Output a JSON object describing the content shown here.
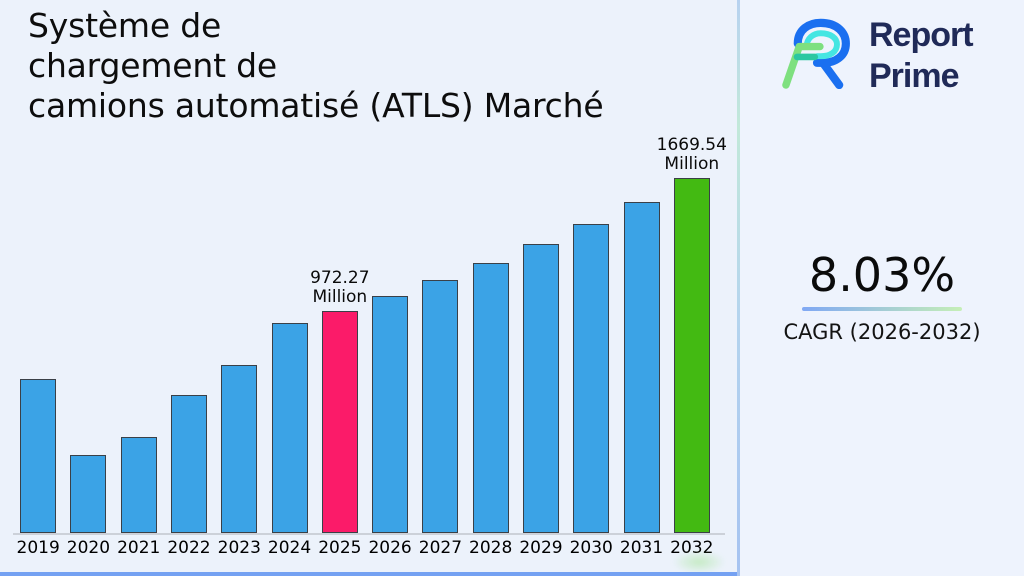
{
  "header": {
    "title": "Système de\nchargement de\ncamions automatisé (ATLS) Marché"
  },
  "brand": {
    "line1": "Report",
    "line2": "Prime"
  },
  "stats": {
    "cagr_value": "8.03%",
    "cagr_label": "CAGR (2026-2032)"
  },
  "colors": {
    "bar_default": "#3ba3e6",
    "bar_highlight_2025": "#fb1b69",
    "bar_forecast_2032": "#43ba12",
    "divider_blue": "#a6c3f1",
    "bottom_accent": "#74a1f2",
    "underline_gradient_from": "#80a8f4",
    "underline_gradient_to": "#c6efb7",
    "brand_navy": "#202a58",
    "logo_blue": "#1a6ff0",
    "logo_cyan": "#45e6e2",
    "logo_green": "#7ee07f",
    "logo_teal": "#2cc7a2"
  },
  "chart_data": {
    "type": "bar",
    "title": "Système de chargement de camions automatisé (ATLS) Marché",
    "unit": "Million",
    "xlabel": "",
    "ylabel": "",
    "grid": false,
    "legend": false,
    "ylim": [
      -192,
      1870
    ],
    "categories": [
      "2019",
      "2020",
      "2021",
      "2022",
      "2023",
      "2024",
      "2025",
      "2026",
      "2027",
      "2028",
      "2029",
      "2030",
      "2031",
      "2032"
    ],
    "values": [
      615,
      217,
      312,
      532,
      689,
      910,
      972.27,
      1050.34,
      1134.68,
      1225.79,
      1324.22,
      1430.55,
      1545.42,
      1669.54
    ],
    "bar_colors": [
      "#3ba3e6",
      "#3ba3e6",
      "#3ba3e6",
      "#3ba3e6",
      "#3ba3e6",
      "#3ba3e6",
      "#fb1b69",
      "#3ba3e6",
      "#3ba3e6",
      "#3ba3e6",
      "#3ba3e6",
      "#3ba3e6",
      "#3ba3e6",
      "#43ba12"
    ],
    "point_labels": [
      "",
      "",
      "",
      "",
      "",
      "",
      "972.27\nMillion",
      "",
      "",
      "",
      "",
      "",
      "",
      "1669.54\nMillion"
    ],
    "annotations": [
      {
        "category": "2025",
        "text": "972.27 Million"
      },
      {
        "category": "2032",
        "text": "1669.54 Million"
      }
    ]
  }
}
